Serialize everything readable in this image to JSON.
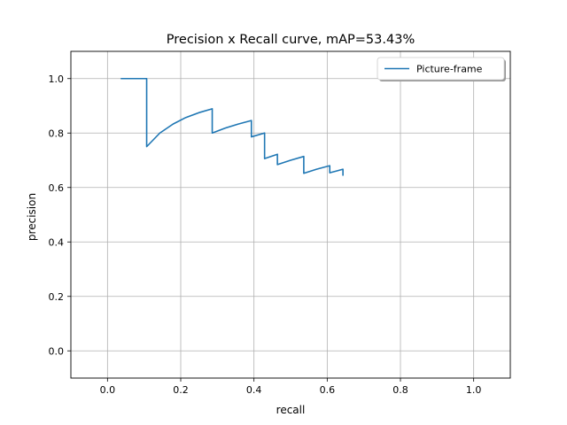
{
  "chart_data": {
    "type": "line",
    "title": "Precision x Recall curve, mAP=53.43%",
    "xlabel": "recall",
    "ylabel": "precision",
    "xlim": [
      -0.1,
      1.1
    ],
    "ylim": [
      -0.1,
      1.1
    ],
    "xticks": [
      0.0,
      0.2,
      0.4,
      0.6,
      0.8,
      1.0
    ],
    "yticks": [
      0.0,
      0.2,
      0.4,
      0.6,
      0.8,
      1.0
    ],
    "xtick_labels": [
      "0.0",
      "0.2",
      "0.4",
      "0.6",
      "0.8",
      "1.0"
    ],
    "ytick_labels": [
      "0.0",
      "0.2",
      "0.4",
      "0.6",
      "0.8",
      "1.0"
    ],
    "grid": true,
    "legend_position": "top-right",
    "series": [
      {
        "name": "Picture-frame",
        "color": "#1f77b4",
        "x": [
          0.036,
          0.107,
          0.107,
          0.143,
          0.179,
          0.214,
          0.25,
          0.286,
          0.286,
          0.321,
          0.357,
          0.393,
          0.393,
          0.429,
          0.429,
          0.464,
          0.464,
          0.5,
          0.536,
          0.536,
          0.571,
          0.607,
          0.607,
          0.643,
          0.643
        ],
        "y": [
          1.0,
          1.0,
          0.75,
          0.8,
          0.833,
          0.857,
          0.875,
          0.889,
          0.8,
          0.818,
          0.833,
          0.846,
          0.786,
          0.8,
          0.706,
          0.722,
          0.684,
          0.7,
          0.714,
          0.652,
          0.667,
          0.68,
          0.654,
          0.667,
          0.643
        ]
      }
    ]
  }
}
